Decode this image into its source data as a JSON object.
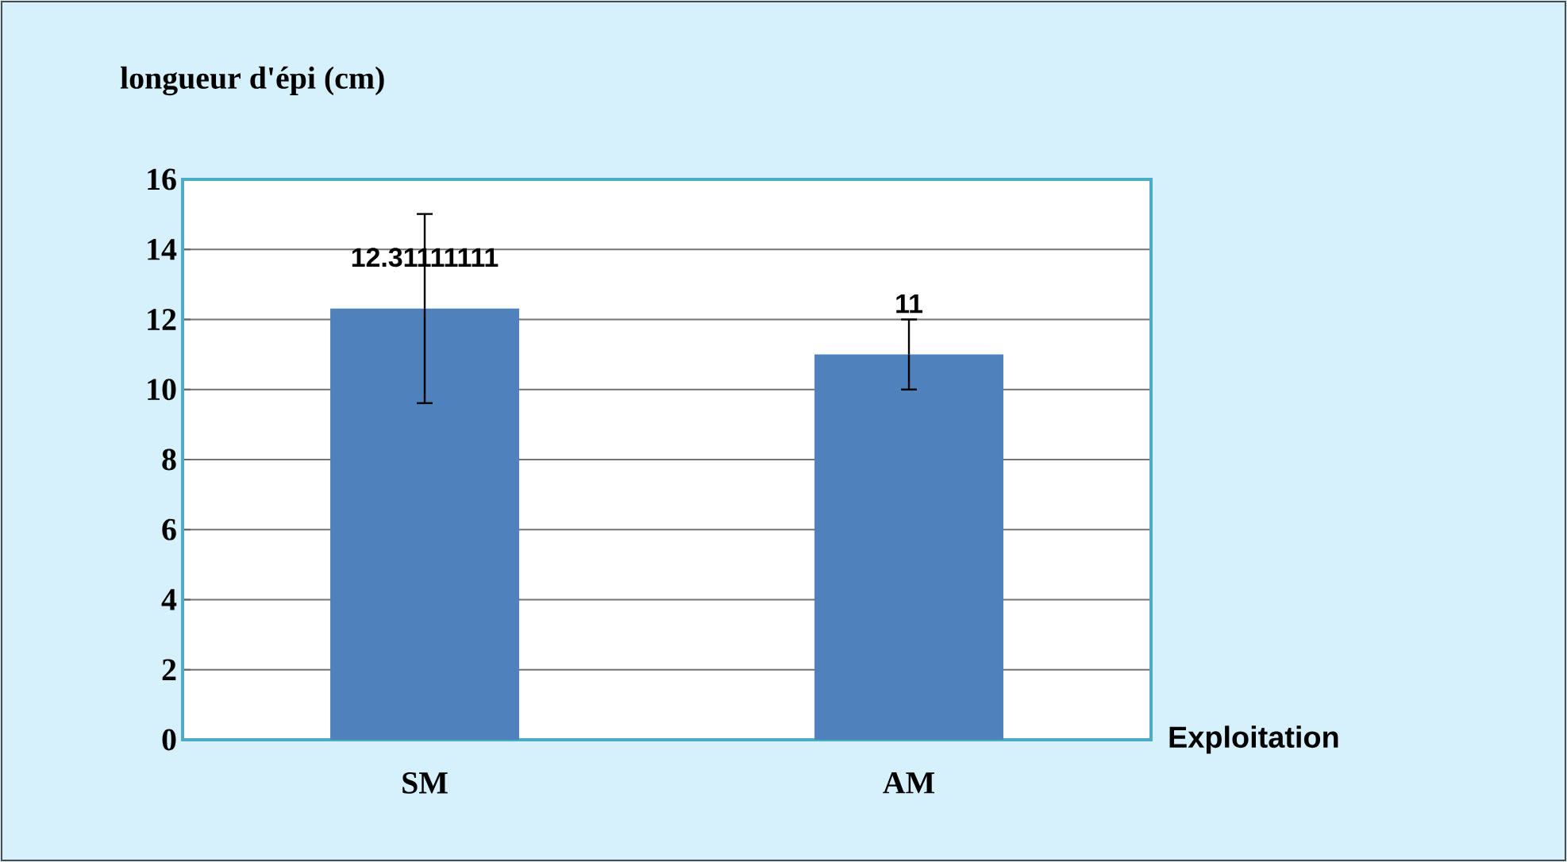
{
  "chart_data": {
    "type": "bar",
    "ylabel": "longueur d'épi (cm)",
    "xlabel": "Exploitation",
    "categories": [
      "SM",
      "AM"
    ],
    "values": [
      12.31111111,
      11
    ],
    "errors": [
      2.7,
      1
    ],
    "color": "#4f81bd",
    "ylim": [
      0,
      16
    ],
    "yticks": [
      0,
      2,
      4,
      6,
      8,
      10,
      12,
      14,
      16
    ],
    "grid": "y",
    "data_labels": true
  }
}
